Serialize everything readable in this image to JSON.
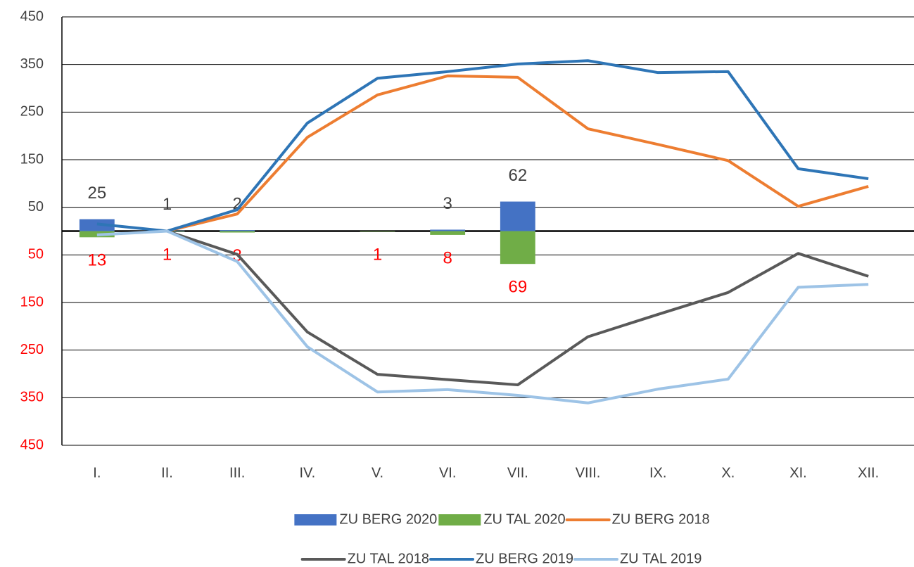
{
  "chart_data": {
    "type": "bar-line",
    "categories": [
      "I.",
      "II.",
      "III.",
      "IV.",
      "V.",
      "VI.",
      "VII.",
      "VIII.",
      "IX.",
      "X.",
      "XI.",
      "XII."
    ],
    "ylim": [
      -450,
      450
    ],
    "yticks": [
      450,
      350,
      250,
      150,
      50,
      {
        "value": -50,
        "label": "50"
      },
      {
        "value": -150,
        "label": "150"
      },
      {
        "value": -250,
        "label": "250"
      },
      {
        "value": -350,
        "label": "350"
      },
      {
        "value": -450,
        "label": "450"
      }
    ],
    "tick_color": "#404040",
    "negative_tick_color": "#ff0000",
    "grid": true,
    "series": [
      {
        "name": "ZU BERG 2020",
        "kind": "bar",
        "color": "#4472c4",
        "label_color": "#404040",
        "values": [
          25,
          1,
          2,
          null,
          null,
          3,
          62,
          null,
          null,
          null,
          null,
          null
        ]
      },
      {
        "name": "ZU TAL 2020",
        "kind": "bar",
        "color": "#70ad47",
        "label_color": "#ff0000",
        "values": [
          -13,
          -1,
          -3,
          null,
          -1,
          -8,
          -69,
          null,
          null,
          null,
          null,
          null
        ],
        "value_labels": [
          "13",
          "1",
          "3",
          null,
          "1",
          "8",
          "69",
          null,
          null,
          null,
          null,
          null
        ]
      },
      {
        "name": "ZU BERG 2018",
        "kind": "line",
        "color": "#ed7d31",
        "values": [
          null,
          0,
          36,
          197,
          286,
          326,
          323,
          215,
          182,
          148,
          52,
          94
        ]
      },
      {
        "name": "ZU TAL 2018",
        "kind": "line",
        "color": "#595959",
        "values": [
          null,
          0,
          -49,
          -212,
          -301,
          -312,
          -323,
          -222,
          -175,
          -129,
          -47,
          -95
        ]
      },
      {
        "name": "ZU BERG 2019",
        "kind": "line",
        "color": "#2e75b6",
        "values": [
          15,
          0,
          45,
          227,
          321,
          335,
          351,
          358,
          333,
          335,
          131,
          110
        ]
      },
      {
        "name": "ZU TAL 2019",
        "kind": "line",
        "color": "#9dc3e6",
        "values": [
          -8,
          0,
          -64,
          -243,
          -338,
          -333,
          -345,
          -361,
          -332,
          -311,
          -118,
          -112
        ]
      }
    ],
    "legend_order": [
      0,
      1,
      2,
      3,
      4,
      5
    ]
  }
}
